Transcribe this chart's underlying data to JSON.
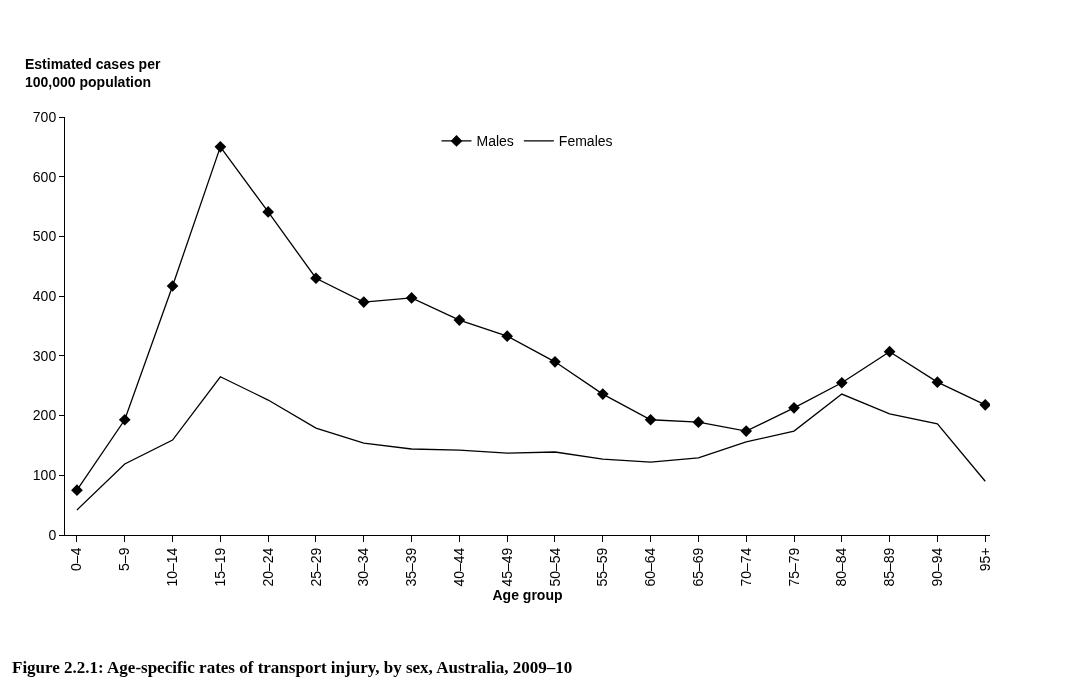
{
  "chart_data": {
    "type": "line",
    "title": "Figure 2.2.1: Age-specific rates of transport injury, by sex, Australia, 2009–10",
    "xlabel": "Age group",
    "ylabel": "Estimated cases per\n100,000 population",
    "categories": [
      "0–4",
      "5–9",
      "10–14",
      "15–19",
      "20–24",
      "25–29",
      "30–34",
      "35–39",
      "40–44",
      "45–49",
      "50–54",
      "55–59",
      "60–64",
      "65–69",
      "70–74",
      "75–79",
      "80–84",
      "85–89",
      "90–94",
      "95+"
    ],
    "series": [
      {
        "name": "Males",
        "color": "#000000",
        "marker": "diamond",
        "values": [
          75,
          193,
          417,
          650,
          541,
          430,
          390,
          397,
          360,
          333,
          290,
          236,
          193,
          189,
          174,
          213,
          255,
          307,
          256,
          218
        ]
      },
      {
        "name": "Females",
        "color": "#000000",
        "marker": "none",
        "values": [
          42,
          119,
          159,
          265,
          226,
          179,
          154,
          144,
          142,
          137,
          139,
          127,
          122,
          129,
          156,
          174,
          236,
          203,
          186,
          90
        ]
      }
    ],
    "ylim": [
      0,
      700
    ],
    "yticks": [
      0,
      100,
      200,
      300,
      400,
      500,
      600,
      700
    ],
    "legend": "top",
    "line_style": "solid"
  }
}
